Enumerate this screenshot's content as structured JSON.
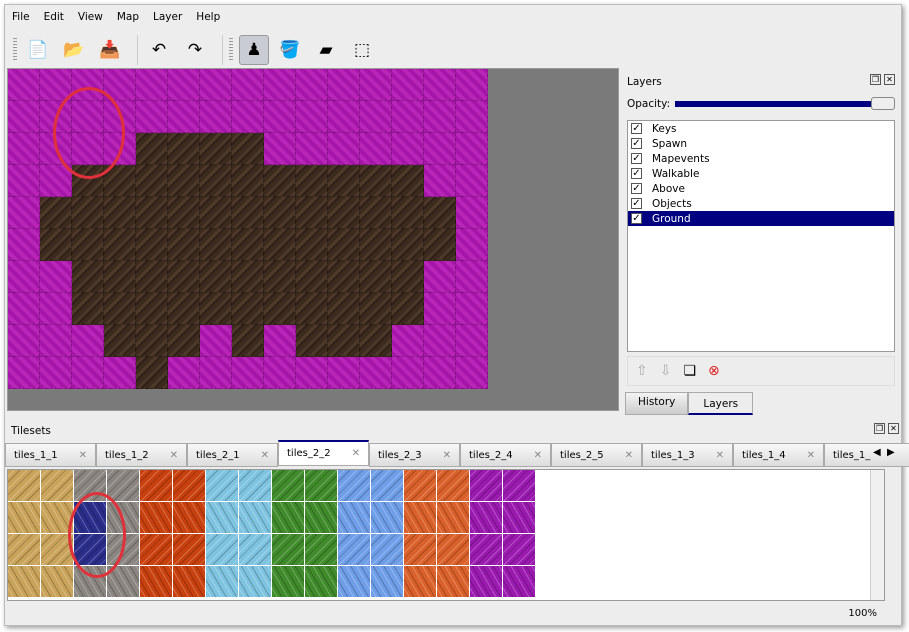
{
  "menu": [
    "File",
    "Edit",
    "View",
    "Map",
    "Layer",
    "Help"
  ],
  "toolbar": [
    {
      "name": "new-icon",
      "glyph": "📄"
    },
    {
      "name": "open-icon",
      "glyph": "📂"
    },
    {
      "name": "save-icon",
      "glyph": "📥"
    },
    {
      "name": "undo-icon",
      "glyph": "↶"
    },
    {
      "name": "redo-icon",
      "glyph": "↷"
    },
    {
      "name": "stamp-brush-icon",
      "glyph": "♟"
    },
    {
      "name": "bucket-fill-icon",
      "glyph": "🪣"
    },
    {
      "name": "eraser-icon",
      "glyph": "▰"
    },
    {
      "name": "rect-select-icon",
      "glyph": "⬚"
    }
  ],
  "tile_map": [
    "mmmmmmmmmmmmmmm",
    "mmmmmmmmmmmmmmm",
    "mmmmddddmmmmmmm",
    "mmdddddddddddmm",
    "mdddddddddddddm",
    "mdddddddddddddm",
    "mmdddddddddddmm",
    "mmdddddddddddmm",
    "mmmdddmdmdddmmm",
    "mmmmdmmmmmmmmmm"
  ],
  "layers": {
    "title": "Layers",
    "opacity_label": "Opacity:",
    "opacity": 1.0,
    "items": [
      {
        "label": "Keys",
        "checked": true
      },
      {
        "label": "Spawn",
        "checked": true
      },
      {
        "label": "Mapevents",
        "checked": true
      },
      {
        "label": "Walkable",
        "checked": true
      },
      {
        "label": "Above",
        "checked": true
      },
      {
        "label": "Objects",
        "checked": true
      },
      {
        "label": "Ground",
        "checked": true,
        "selected": true
      }
    ],
    "tabs": [
      "History",
      "Layers"
    ],
    "active_tab": "Layers"
  },
  "tilesets": {
    "title": "Tilesets",
    "tabs": [
      "tiles_1_1",
      "tiles_1_2",
      "tiles_2_1",
      "tiles_2_2",
      "tiles_2_3",
      "tiles_2_4",
      "tiles_2_5",
      "tiles_1_3",
      "tiles_1_4",
      "tiles_1_"
    ],
    "active": "tiles_2_2",
    "palette": [
      "#c9a35a",
      "#8a8580",
      "#c8400e",
      "#7ec4e0",
      "#3f8a2a",
      "#6f9ee8",
      "#d9602a",
      "#9a1ab0"
    ]
  },
  "status": {
    "zoom": "100%"
  },
  "colors": {
    "accent": "#000080",
    "annotation": "#e0303a"
  }
}
